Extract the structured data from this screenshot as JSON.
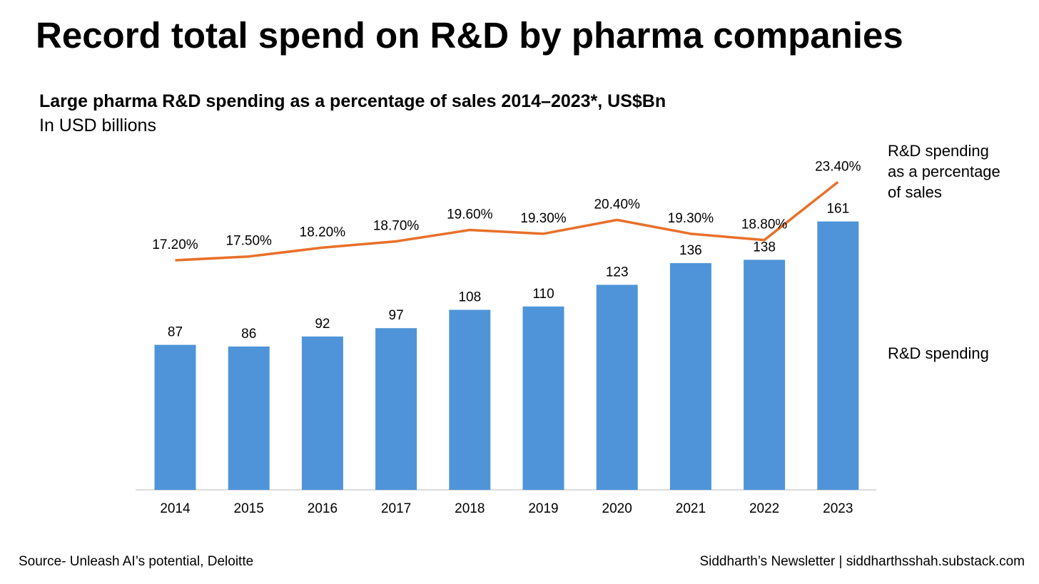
{
  "title": "Record total spend on R&D by pharma companies",
  "subtitle": "Large pharma R&D spending as a percentage of sales 2014–2023*, US$Bn",
  "units": "In USD billions",
  "footer": {
    "source": "Source- Unleash AI’s potential, Deloitte",
    "credit": "Siddharth’s Newsletter | siddharthsshah.substack.com"
  },
  "colors": {
    "bar": "#4f94d9",
    "line": "#e8702a",
    "axis": "#d0d0d0"
  },
  "chart_data": {
    "type": "bar",
    "categories": [
      "2014",
      "2015",
      "2016",
      "2017",
      "2018",
      "2019",
      "2020",
      "2021",
      "2022",
      "2023"
    ],
    "series": [
      {
        "name": "R&D spending",
        "type": "bar",
        "values": [
          87,
          86,
          92,
          97,
          108,
          110,
          123,
          136,
          138,
          161
        ],
        "labels": [
          "87",
          "86",
          "92",
          "97",
          "108",
          "110",
          "123",
          "136",
          "138",
          "161"
        ]
      },
      {
        "name": "R&D spending as a percentage of sales",
        "name_lines": [
          "R&D spending",
          "as a percentage",
          "of sales"
        ],
        "type": "line",
        "values": [
          17.2,
          17.5,
          18.2,
          18.7,
          19.6,
          19.3,
          20.4,
          19.3,
          18.8,
          23.4
        ],
        "labels": [
          "17.20%",
          "17.50%",
          "18.20%",
          "18.70%",
          "19.60%",
          "19.30%",
          "20.40%",
          "19.30%",
          "18.80%",
          "23.40%"
        ]
      }
    ],
    "legend_placement": "right",
    "grid": false
  }
}
